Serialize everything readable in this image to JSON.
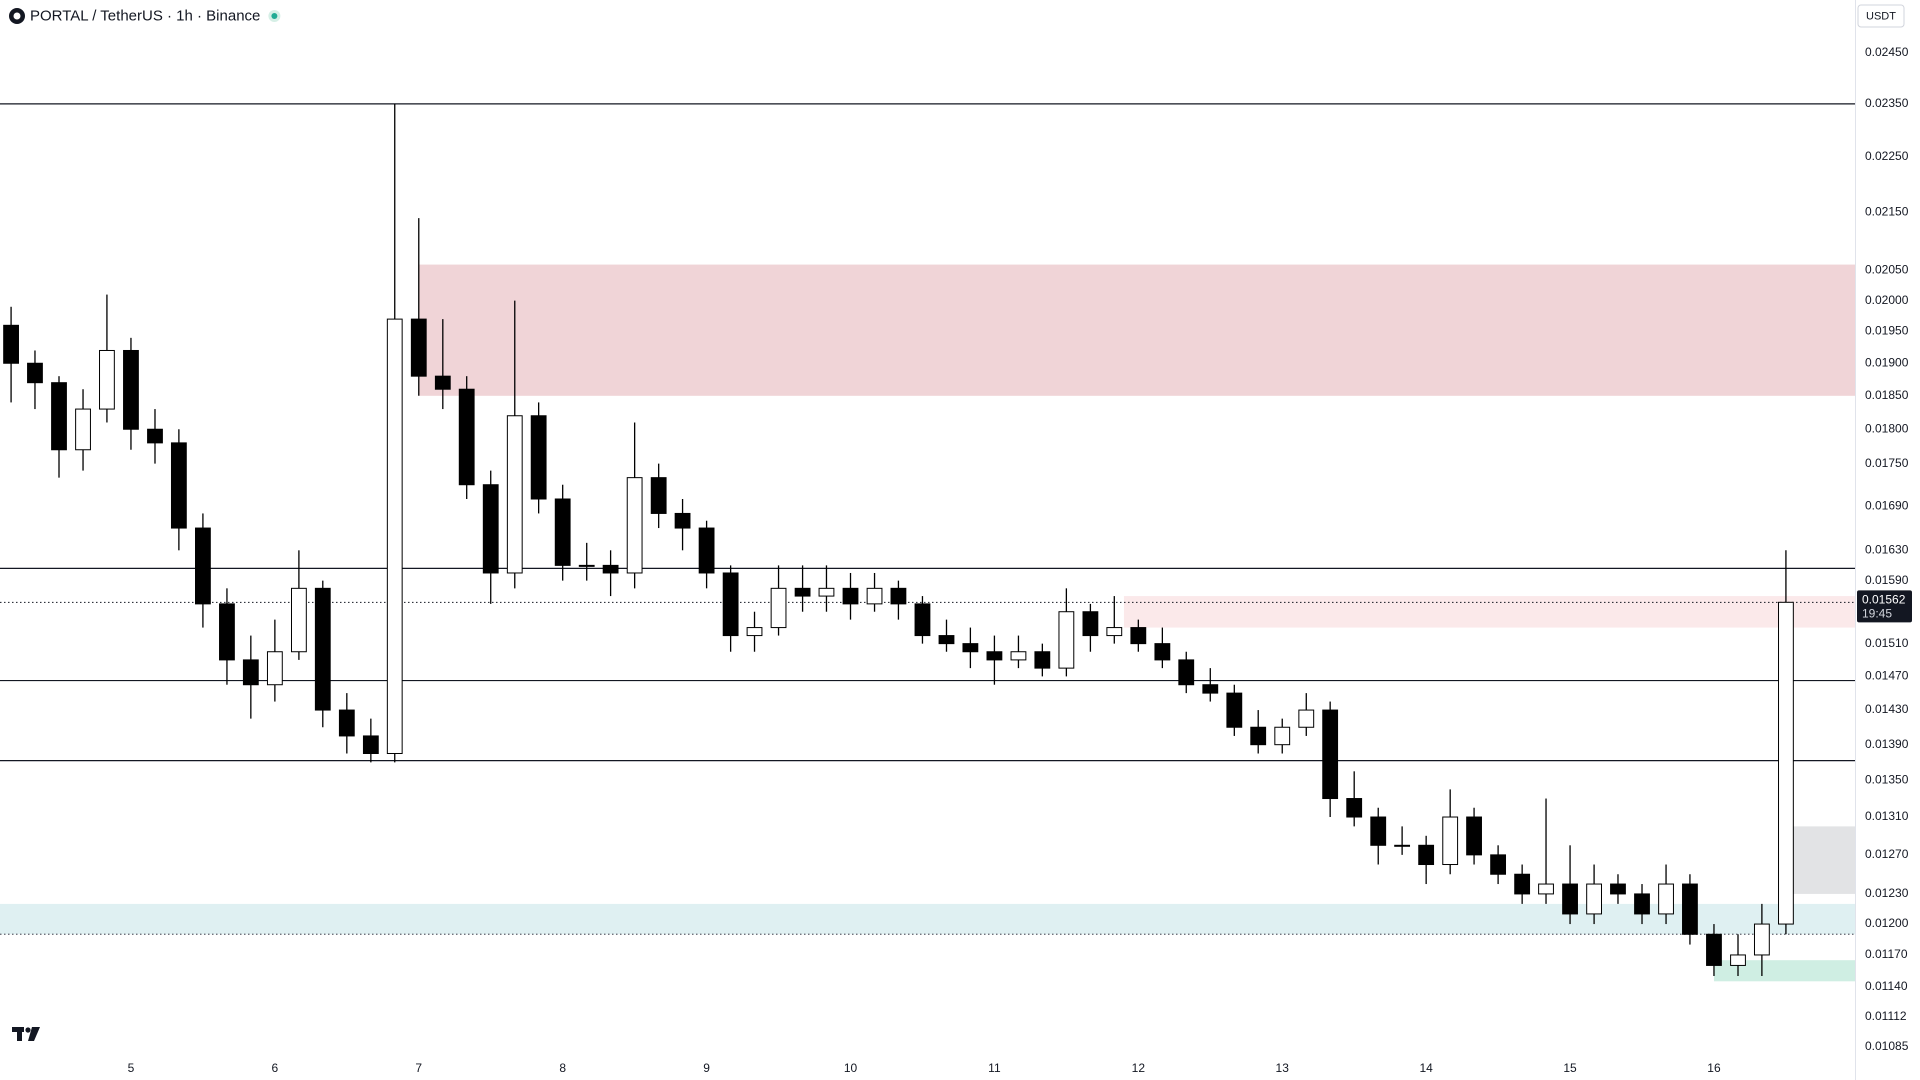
{
  "chart_data": {
    "type": "candlestick",
    "title": "PORTAL / TetherUS · 1h · Binance",
    "currency": "USDT",
    "countdown": "19:45",
    "log_scale": true,
    "grid": false,
    "up_color": "#ffffff",
    "down_color": "#000000",
    "xlim": [
      4.09,
      16.98
    ],
    "xticks": [
      5,
      6,
      7,
      8,
      9,
      10,
      11,
      12,
      13,
      14,
      15,
      16
    ],
    "ylim": [
      0.01085,
      0.0245
    ],
    "yticks": [
      {
        "value": 0.0245,
        "label": "0.02450"
      },
      {
        "value": 0.0235,
        "label": "0.02350"
      },
      {
        "value": 0.0225,
        "label": "0.02250"
      },
      {
        "value": 0.0215,
        "label": "0.02150"
      },
      {
        "value": 0.0205,
        "label": "0.02050"
      },
      {
        "value": 0.02,
        "label": "0.02000"
      },
      {
        "value": 0.0195,
        "label": "0.01950"
      },
      {
        "value": 0.019,
        "label": "0.01900"
      },
      {
        "value": 0.0185,
        "label": "0.01850"
      },
      {
        "value": 0.018,
        "label": "0.01800"
      },
      {
        "value": 0.0175,
        "label": "0.01750"
      },
      {
        "value": 0.0169,
        "label": "0.01690"
      },
      {
        "value": 0.0163,
        "label": "0.01630"
      },
      {
        "value": 0.0159,
        "label": "0.01590"
      },
      {
        "value": 0.0151,
        "label": "0.01510"
      },
      {
        "value": 0.0147,
        "label": "0.01470"
      },
      {
        "value": 0.0143,
        "label": "0.01430"
      },
      {
        "value": 0.0139,
        "label": "0.01390"
      },
      {
        "value": 0.0135,
        "label": "0.01350"
      },
      {
        "value": 0.0131,
        "label": "0.01310"
      },
      {
        "value": 0.0127,
        "label": "0.01270"
      },
      {
        "value": 0.0123,
        "label": "0.01230"
      },
      {
        "value": 0.012,
        "label": "0.01200"
      },
      {
        "value": 0.0117,
        "label": "0.01170"
      },
      {
        "value": 0.0114,
        "label": "0.01140"
      },
      {
        "value": 0.01112,
        "label": "0.01112"
      },
      {
        "value": 0.01085,
        "label": "0.01085"
      }
    ],
    "x": [
      4.167,
      4.333,
      4.5,
      4.667,
      4.833,
      5,
      5.167,
      5.333,
      5.5,
      5.667,
      5.833,
      6,
      6.167,
      6.333,
      6.5,
      6.667,
      6.833,
      7,
      7.167,
      7.333,
      7.5,
      7.667,
      7.833,
      8,
      8.167,
      8.333,
      8.5,
      8.667,
      8.833,
      9,
      9.167,
      9.333,
      9.5,
      9.667,
      9.833,
      10,
      10.167,
      10.333,
      10.5,
      10.667,
      10.833,
      11,
      11.167,
      11.333,
      11.5,
      11.667,
      11.833,
      12,
      12.167,
      12.333,
      12.5,
      12.667,
      12.833,
      13,
      13.167,
      13.333,
      13.5,
      13.667,
      13.833,
      14,
      14.167,
      14.333,
      14.5,
      14.667,
      14.833,
      15,
      15.167,
      15.333,
      15.5,
      15.667,
      15.833,
      16,
      16.167,
      16.333,
      16.5
    ],
    "ohlc": [
      [
        0.0196,
        0.0199,
        0.0184,
        0.019
      ],
      [
        0.019,
        0.0192,
        0.0183,
        0.0187
      ],
      [
        0.0187,
        0.0188,
        0.0173,
        0.0177
      ],
      [
        0.0177,
        0.0186,
        0.0174,
        0.0183
      ],
      [
        0.0183,
        0.0201,
        0.0181,
        0.0192
      ],
      [
        0.0192,
        0.0194,
        0.0177,
        0.018
      ],
      [
        0.018,
        0.0183,
        0.0175,
        0.0178
      ],
      [
        0.0178,
        0.018,
        0.0163,
        0.0166
      ],
      [
        0.0166,
        0.0168,
        0.0153,
        0.0156
      ],
      [
        0.0156,
        0.0158,
        0.0146,
        0.0149
      ],
      [
        0.0149,
        0.0152,
        0.0142,
        0.0146
      ],
      [
        0.0146,
        0.0154,
        0.0144,
        0.015
      ],
      [
        0.015,
        0.0163,
        0.0149,
        0.0158
      ],
      [
        0.0158,
        0.0159,
        0.0141,
        0.0143
      ],
      [
        0.0143,
        0.0145,
        0.0138,
        0.014
      ],
      [
        0.014,
        0.0142,
        0.0137,
        0.0138
      ],
      [
        0.0138,
        0.0235,
        0.0137,
        0.0197
      ],
      [
        0.0197,
        0.0214,
        0.0185,
        0.0188
      ],
      [
        0.0188,
        0.0197,
        0.0183,
        0.0186
      ],
      [
        0.0186,
        0.0188,
        0.017,
        0.0172
      ],
      [
        0.0172,
        0.0174,
        0.0156,
        0.016
      ],
      [
        0.016,
        0.02,
        0.0158,
        0.0182
      ],
      [
        0.0182,
        0.0184,
        0.0168,
        0.017
      ],
      [
        0.017,
        0.0172,
        0.0159,
        0.0161
      ],
      [
        0.0161,
        0.0164,
        0.0159,
        0.0161
      ],
      [
        0.0161,
        0.0163,
        0.0157,
        0.016
      ],
      [
        0.016,
        0.0181,
        0.0158,
        0.0173
      ],
      [
        0.0173,
        0.0175,
        0.0166,
        0.0168
      ],
      [
        0.0168,
        0.017,
        0.0163,
        0.0166
      ],
      [
        0.0166,
        0.0167,
        0.0158,
        0.016
      ],
      [
        0.016,
        0.0161,
        0.015,
        0.0152
      ],
      [
        0.0152,
        0.0155,
        0.015,
        0.0153
      ],
      [
        0.0153,
        0.0161,
        0.0152,
        0.0158
      ],
      [
        0.0158,
        0.0161,
        0.0155,
        0.0157
      ],
      [
        0.0157,
        0.0161,
        0.0155,
        0.0158
      ],
      [
        0.0158,
        0.016,
        0.0154,
        0.0156
      ],
      [
        0.0156,
        0.016,
        0.0155,
        0.0158
      ],
      [
        0.0158,
        0.0159,
        0.0154,
        0.0156
      ],
      [
        0.0156,
        0.0157,
        0.0151,
        0.0152
      ],
      [
        0.0152,
        0.0154,
        0.015,
        0.0151
      ],
      [
        0.0151,
        0.0153,
        0.0148,
        0.015
      ],
      [
        0.015,
        0.0152,
        0.0146,
        0.0149
      ],
      [
        0.0149,
        0.0152,
        0.0148,
        0.015
      ],
      [
        0.015,
        0.0151,
        0.0147,
        0.0148
      ],
      [
        0.0148,
        0.0158,
        0.0147,
        0.0155
      ],
      [
        0.0155,
        0.0156,
        0.015,
        0.0152
      ],
      [
        0.0152,
        0.0157,
        0.0151,
        0.0153
      ],
      [
        0.0153,
        0.0154,
        0.015,
        0.0151
      ],
      [
        0.0151,
        0.0153,
        0.0148,
        0.0149
      ],
      [
        0.0149,
        0.015,
        0.0145,
        0.0146
      ],
      [
        0.0146,
        0.0148,
        0.0144,
        0.0145
      ],
      [
        0.0145,
        0.0146,
        0.014,
        0.0141
      ],
      [
        0.0141,
        0.0143,
        0.0138,
        0.0139
      ],
      [
        0.0139,
        0.0142,
        0.0138,
        0.0141
      ],
      [
        0.0141,
        0.0145,
        0.014,
        0.0143
      ],
      [
        0.0143,
        0.0144,
        0.0131,
        0.0133
      ],
      [
        0.0133,
        0.0136,
        0.013,
        0.0131
      ],
      [
        0.0131,
        0.0132,
        0.0126,
        0.0128
      ],
      [
        0.0128,
        0.013,
        0.0127,
        0.0128
      ],
      [
        0.0128,
        0.0129,
        0.0124,
        0.0126
      ],
      [
        0.0126,
        0.0134,
        0.0125,
        0.0131
      ],
      [
        0.0131,
        0.0132,
        0.0126,
        0.0127
      ],
      [
        0.0127,
        0.0128,
        0.0124,
        0.0125
      ],
      [
        0.0125,
        0.0126,
        0.0122,
        0.0123
      ],
      [
        0.0123,
        0.0133,
        0.0122,
        0.0124
      ],
      [
        0.0124,
        0.0128,
        0.012,
        0.0121
      ],
      [
        0.0121,
        0.0126,
        0.012,
        0.0124
      ],
      [
        0.0124,
        0.0125,
        0.0122,
        0.0123
      ],
      [
        0.0123,
        0.0124,
        0.012,
        0.0121
      ],
      [
        0.0121,
        0.0126,
        0.012,
        0.0124
      ],
      [
        0.0124,
        0.0125,
        0.0118,
        0.0119
      ],
      [
        0.0119,
        0.012,
        0.0115,
        0.0116
      ],
      [
        0.0116,
        0.0119,
        0.0115,
        0.0117
      ],
      [
        0.0117,
        0.0122,
        0.0115,
        0.012
      ],
      [
        0.012,
        0.0163,
        0.0119,
        0.01562
      ]
    ],
    "zones": [
      {
        "from": 7.0,
        "low": 0.0185,
        "high": 0.0206,
        "color": "#f0d4d7"
      },
      {
        "from": 11.9,
        "low": 0.0153,
        "high": 0.0157,
        "color": "#fbe9ea"
      },
      {
        "from": 4.09,
        "low": 0.0119,
        "high": 0.0122,
        "color": "#dff0f2"
      },
      {
        "from": 16.0,
        "low": 0.01145,
        "high": 0.01165,
        "color": "#cfeee3"
      },
      {
        "from": 16.5,
        "low": 0.0123,
        "high": 0.013,
        "color": "#e2e3e5"
      }
    ],
    "levels": [
      {
        "value": 0.0235,
        "style": "solid"
      },
      {
        "value": 0.01606,
        "style": "solid"
      },
      {
        "value": 0.01465,
        "style": "solid"
      },
      {
        "value": 0.01372,
        "style": "solid"
      },
      {
        "value": 0.0119,
        "style": "dotted"
      }
    ]
  }
}
